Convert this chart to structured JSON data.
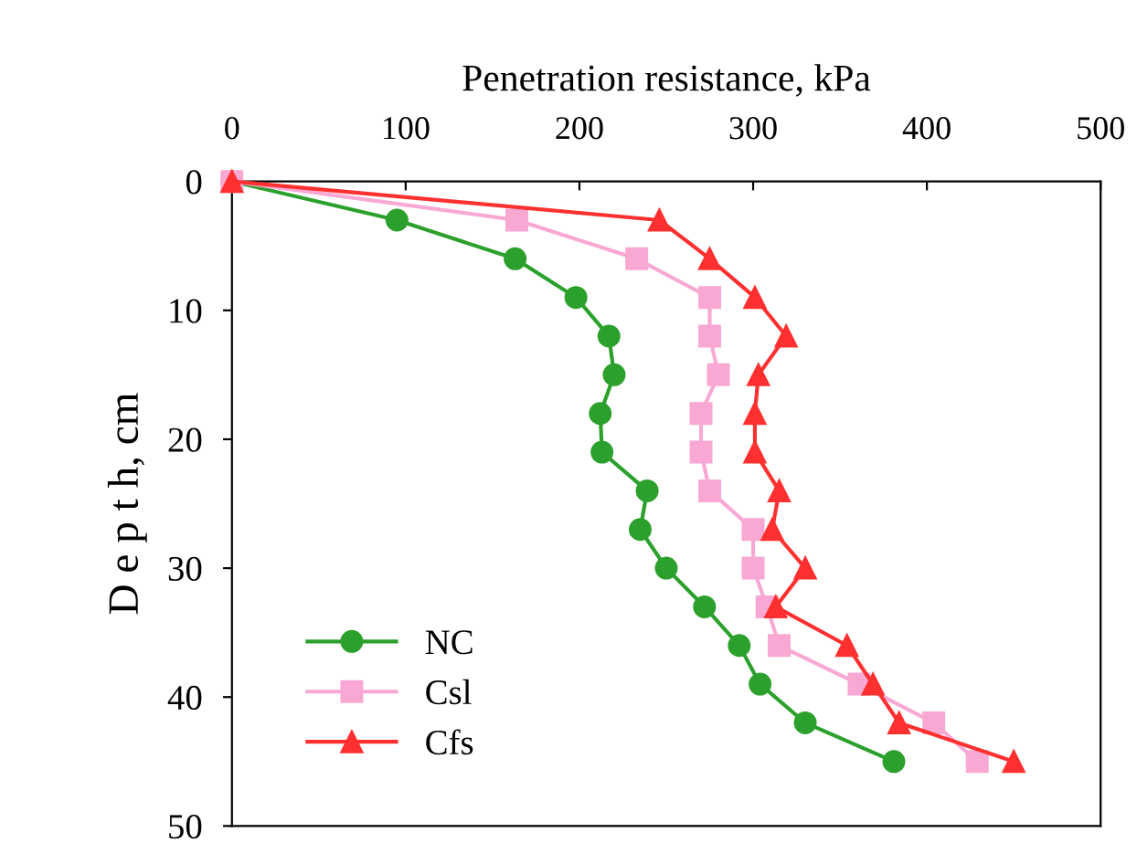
{
  "chart_data": {
    "type": "line",
    "xlabel": "Penetration resistance, kPa",
    "ylabel": "D e p t h, cm",
    "xlim": [
      0,
      500
    ],
    "xticks": [
      0,
      100,
      200,
      300,
      400,
      500
    ],
    "ylim": [
      50,
      0
    ],
    "yticks": [
      0,
      10,
      20,
      30,
      40,
      50
    ],
    "grid": false,
    "legend": "lower left",
    "line_style": "solid",
    "series": [
      {
        "name": "NC",
        "color": "#2ca02c",
        "marker": "circle",
        "x": [
          0,
          95,
          163,
          198,
          217,
          220,
          212,
          213,
          239,
          235,
          250,
          272,
          292,
          304,
          330,
          381
        ],
        "values": [
          0,
          3,
          6,
          9,
          12,
          15,
          18,
          21,
          24,
          27,
          30,
          33,
          36,
          39,
          42,
          45
        ]
      },
      {
        "name": "Csl",
        "color": "#f9a8d4",
        "marker": "square",
        "x": [
          0,
          164,
          233,
          275,
          275,
          280,
          270,
          270,
          275,
          300,
          300,
          308,
          315,
          361,
          404,
          429
        ],
        "values": [
          0,
          3,
          6,
          9,
          12,
          15,
          18,
          21,
          24,
          27,
          30,
          33,
          36,
          39,
          42,
          45
        ]
      },
      {
        "name": "Cfs",
        "color": "#ff3030",
        "marker": "triangle",
        "x": [
          0,
          246,
          275,
          301,
          319,
          303,
          301,
          301,
          315,
          311,
          330,
          313,
          354,
          369,
          384,
          450
        ],
        "values": [
          0,
          3,
          6,
          9,
          12,
          15,
          18,
          21,
          24,
          27,
          30,
          33,
          36,
          39,
          42,
          45
        ]
      }
    ]
  }
}
